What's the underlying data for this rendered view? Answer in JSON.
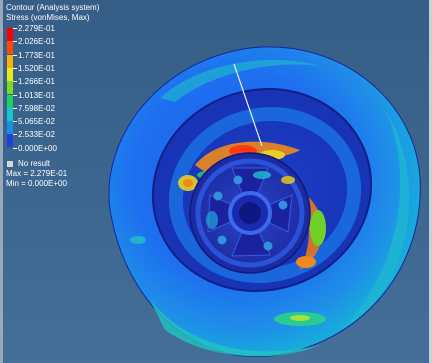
{
  "legend": {
    "title_line1": "Contour (Analysis system)",
    "title_line2": "Stress (vonMises, Max)",
    "scale": [
      {
        "label": "2.279E-01",
        "color": "#ff0000"
      },
      {
        "label": "2.026E-01",
        "color": "#ff4a00"
      },
      {
        "label": "1.773E-01",
        "color": "#ffb000"
      },
      {
        "label": "1.520E-01",
        "color": "#e8ea10"
      },
      {
        "label": "1.266E-01",
        "color": "#7bdc1f"
      },
      {
        "label": "1.013E-01",
        "color": "#1fd160"
      },
      {
        "label": "7.598E-02",
        "color": "#14c9c9"
      },
      {
        "label": "5.065E-02",
        "color": "#1a8fe6"
      },
      {
        "label": "2.533E-02",
        "color": "#1f43d9"
      },
      {
        "label": "0.000E+00",
        "color": "#1a1aa8"
      }
    ],
    "no_result_label": "No result",
    "max_text": "Max = 2.279E-01",
    "min_text": "Min = 0.000E+00"
  },
  "colors": {
    "background": "#3d6790",
    "no_result": "#d8d8d8"
  }
}
